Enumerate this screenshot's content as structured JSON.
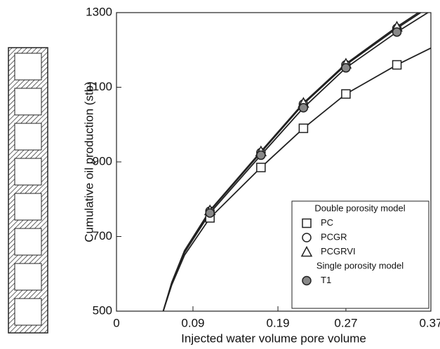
{
  "chart_data": {
    "type": "line",
    "xlabel": "Injected water volume pore volume",
    "ylabel": "Cumulative oil production (stb)",
    "xlim": [
      0,
      0.37
    ],
    "xticks": [
      0,
      0.09,
      0.19,
      0.27,
      0.37
    ],
    "ylim": [
      500,
      1300
    ],
    "yticks": [
      500,
      700,
      900,
      1100,
      1300
    ],
    "x": [
      0.11,
      0.17,
      0.22,
      0.27,
      0.33
    ],
    "fit_x": [
      0.055,
      0.065,
      0.08,
      0.11,
      0.17,
      0.22,
      0.27,
      0.33,
      0.37
    ],
    "legend_titles": [
      "Double porosity model",
      "Single porosity model"
    ],
    "series": [
      {
        "name": "PC",
        "marker": "square",
        "color": "#222222",
        "fill": "#ffffff",
        "values": [
          750,
          885,
          990,
          1082,
          1160
        ],
        "fit_values": [
          500,
          570,
          650,
          750,
          885,
          990,
          1082,
          1160,
          1205
        ]
      },
      {
        "name": "PCGR",
        "marker": "circle",
        "color": "#222222",
        "fill": "#ffffff",
        "values": [
          768,
          925,
          1055,
          1160,
          1258
        ],
        "fit_values": [
          500,
          575,
          660,
          768,
          925,
          1055,
          1160,
          1258,
          1318
        ]
      },
      {
        "name": "PCGRVI",
        "marker": "triangle",
        "color": "#222222",
        "fill": "#ffffff",
        "values": [
          770,
          928,
          1058,
          1163,
          1262
        ],
        "fit_values": [
          500,
          577,
          662,
          770,
          928,
          1058,
          1163,
          1262,
          1322
        ]
      },
      {
        "name": "T1",
        "marker": "circle",
        "color": "#222222",
        "fill": "#888888",
        "values": [
          763,
          918,
          1045,
          1152,
          1248
        ],
        "fit_values": [
          500,
          574,
          657,
          763,
          918,
          1045,
          1152,
          1248,
          1305
        ]
      }
    ]
  }
}
